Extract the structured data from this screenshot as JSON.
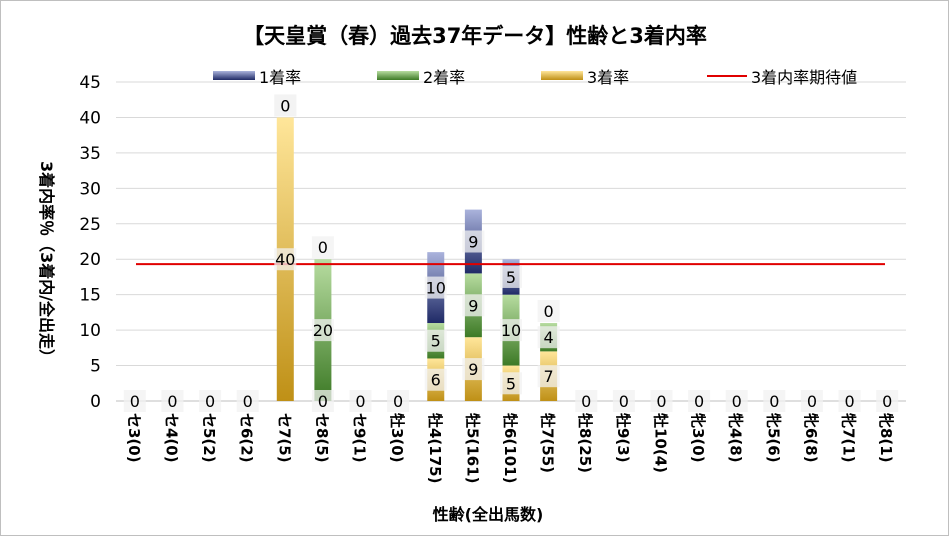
{
  "chart_data": {
    "type": "bar",
    "stacked": true,
    "title": "【天皇賞（春）過去37年データ】性齢と3着内率",
    "xlabel": "性齢(全出馬数)",
    "ylabel": "3着内率％（3着内/全出走）",
    "ylim": [
      0,
      45
    ],
    "yticks": [
      "0",
      "5",
      "10",
      "15",
      "20",
      "25",
      "30",
      "35",
      "40",
      "45"
    ],
    "grid": true,
    "legend_position": "top",
    "categories": [
      "セ3(0)",
      "セ4(0)",
      "セ5(2)",
      "セ6(2)",
      "セ7(5)",
      "セ8(5)",
      "セ9(1)",
      "牡3(0)",
      "牡4(175)",
      "牡5(161)",
      "牡6(101)",
      "牡7(55)",
      "牡8(25)",
      "牡9(3)",
      "牡10(4)",
      "牝3(0)",
      "牝4(8)",
      "牝5(6)",
      "牝6(8)",
      "牝7(1)",
      "牝8(1)"
    ],
    "series": [
      {
        "name": "3着率",
        "color": "#c9a23a",
        "values": [
          0,
          0,
          0,
          0,
          40,
          0,
          0,
          0,
          6,
          9,
          5,
          7,
          0,
          0,
          0,
          0,
          0,
          0,
          0,
          0,
          0
        ]
      },
      {
        "name": "2着率",
        "color": "#6a9a4a",
        "values": [
          0,
          0,
          0,
          0,
          0,
          20,
          0,
          0,
          5,
          9,
          10,
          4,
          0,
          0,
          0,
          0,
          0,
          0,
          0,
          0,
          0
        ]
      },
      {
        "name": "1着率",
        "color": "#3a4a8a",
        "values": [
          0,
          0,
          0,
          0,
          0,
          0,
          0,
          0,
          10,
          9,
          5,
          0,
          0,
          0,
          0,
          0,
          0,
          0,
          0,
          0,
          0
        ]
      }
    ],
    "reference_line": {
      "name": "3着内率期待値",
      "value": 19.3,
      "color": "#e00000"
    }
  }
}
